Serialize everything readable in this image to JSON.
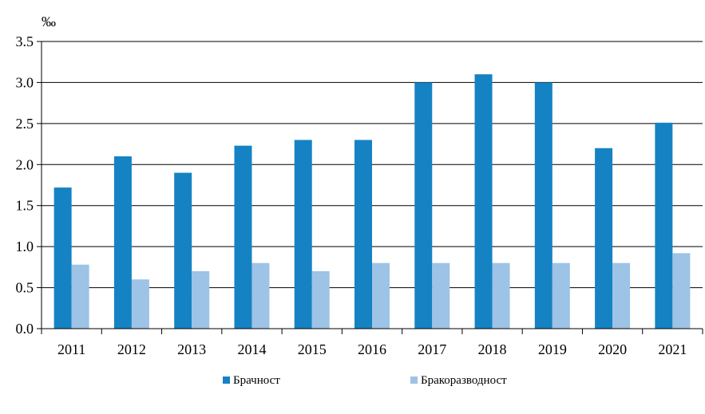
{
  "chart_data": {
    "type": "bar",
    "unit_label": "‰",
    "categories": [
      "2011",
      "2012",
      "2013",
      "2014",
      "2015",
      "2016",
      "2017",
      "2018",
      "2019",
      "2020",
      "2021"
    ],
    "series": [
      {
        "name": "Брачност",
        "color": "#1583c3",
        "values": [
          1.72,
          2.1,
          1.9,
          2.23,
          2.3,
          2.3,
          3.0,
          3.1,
          3.0,
          2.2,
          2.51
        ]
      },
      {
        "name": "Бракоразводност",
        "color": "#9dc3e6",
        "values": [
          0.78,
          0.6,
          0.7,
          0.8,
          0.7,
          0.8,
          0.8,
          0.8,
          0.8,
          0.8,
          0.92
        ]
      }
    ],
    "ylim": [
      0,
      3.5
    ],
    "yticks": [
      "0.0",
      "0.5",
      "1.0",
      "1.5",
      "2.0",
      "2.5",
      "3.0",
      "3.5"
    ],
    "grid": true,
    "legend_position": "bottom"
  }
}
